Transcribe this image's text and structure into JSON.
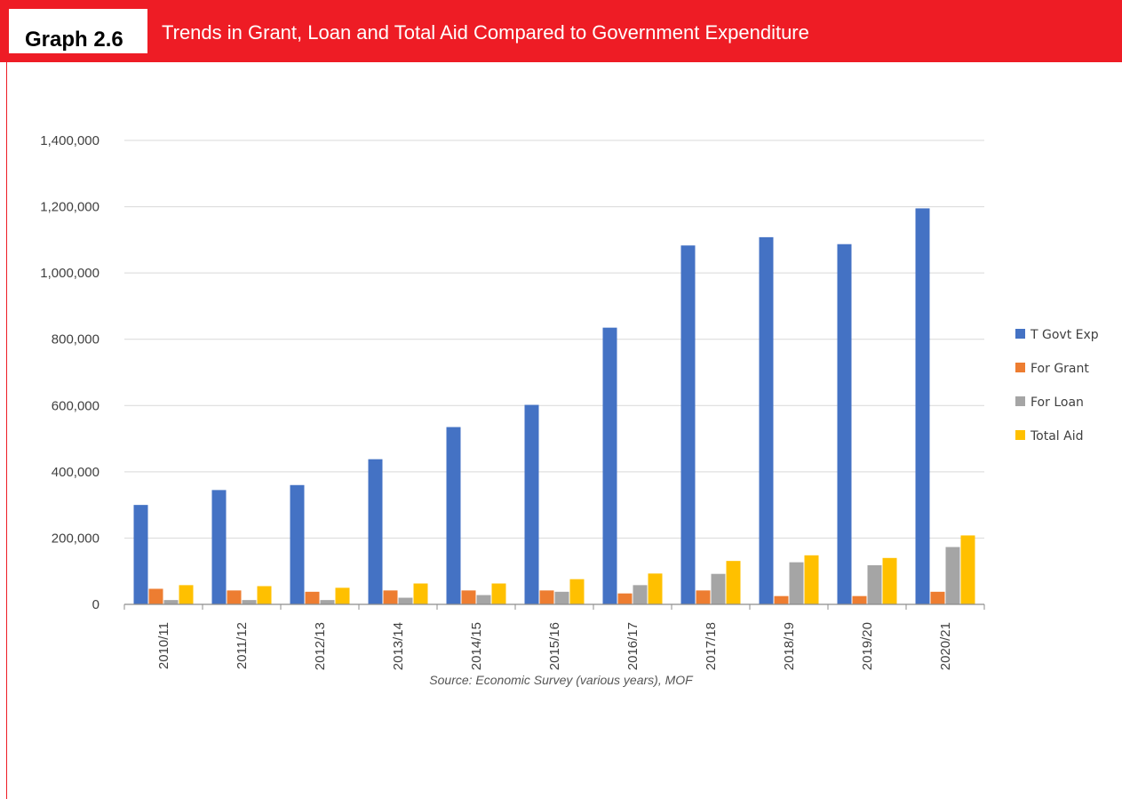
{
  "header": {
    "label": "Graph 2.6",
    "title": "Trends in Grant, Loan and Total Aid Compared to Government Expenditure"
  },
  "source": "Source: Economic Survey (various years), MOF",
  "colors": {
    "header_red": "#ee1c25",
    "t_govt_exp": "#4472c4",
    "for_grant": "#ed7d31",
    "for_loan": "#a5a5a5",
    "total_aid": "#ffc000"
  },
  "chart_data": {
    "type": "bar",
    "title": "",
    "xlabel": "",
    "ylabel": "",
    "ylim": [
      0,
      1400000
    ],
    "yticks": [
      "0",
      "200,000",
      "400,000",
      "600,000",
      "800,000",
      "1,000,000",
      "1,200,000",
      "1,400,000"
    ],
    "grid": true,
    "legend_position": "right",
    "categories": [
      "2010/11",
      "2011/12",
      "2012/13",
      "2013/14",
      "2014/15",
      "2015/16",
      "2016/17",
      "2017/18",
      "2018/19",
      "2019/20",
      "2020/21"
    ],
    "series": [
      {
        "name": "T Govt Exp",
        "color": "#4472c4",
        "values": [
          300000,
          345000,
          360000,
          438000,
          535000,
          602000,
          835000,
          1083000,
          1108000,
          1087000,
          1195000
        ]
      },
      {
        "name": "For Grant",
        "color": "#ed7d31",
        "values": [
          47000,
          42000,
          38000,
          42000,
          42000,
          42000,
          33000,
          42000,
          25000,
          25000,
          38000
        ]
      },
      {
        "name": "For Loan",
        "color": "#a5a5a5",
        "values": [
          13000,
          13000,
          13000,
          20000,
          28000,
          38000,
          58000,
          92000,
          127000,
          118000,
          173000
        ]
      },
      {
        "name": "Total Aid",
        "color": "#ffc000",
        "values": [
          58000,
          55000,
          50000,
          63000,
          63000,
          76000,
          93000,
          131000,
          148000,
          140000,
          208000
        ]
      }
    ]
  }
}
